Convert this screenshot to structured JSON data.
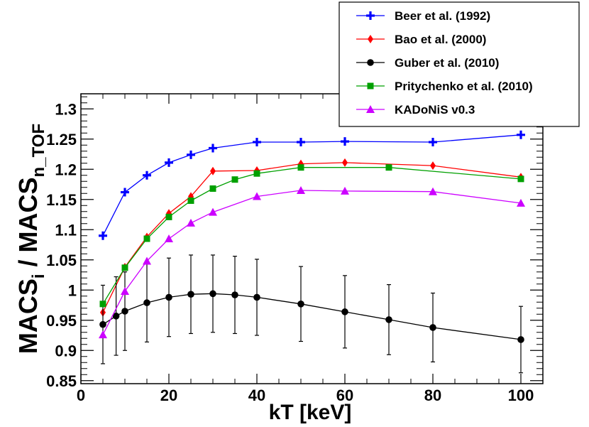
{
  "chart_data": {
    "type": "line",
    "title": "",
    "xlabel": "kT  [keV]",
    "ylabel": {
      "main": "MACS",
      "sub_i": "i",
      "divider": " / MACS",
      "sub_n": "n_TOF"
    },
    "xlim": [
      0,
      105
    ],
    "ylim": [
      0.845,
      1.325
    ],
    "xticks": [
      0,
      20,
      40,
      60,
      80,
      100
    ],
    "xtick_labels": [
      "0",
      "20",
      "40",
      "60",
      "80",
      "100"
    ],
    "yticks": [
      0.85,
      0.9,
      0.95,
      1.0,
      1.05,
      1.1,
      1.15,
      1.2,
      1.25,
      1.3
    ],
    "ytick_labels": [
      "0.85",
      "0.9",
      "0.95",
      "1",
      "1.05",
      "1.1",
      "1.15",
      "1.2",
      "1.25",
      "1.3"
    ],
    "legend_position": "top-right",
    "series": [
      {
        "name": "Beer et al. (1992)",
        "color": "#0000ff",
        "marker": "cross",
        "x": [
          5,
          10,
          15,
          20,
          25,
          30,
          40,
          50,
          60,
          80,
          100
        ],
        "values": [
          1.09,
          1.162,
          1.19,
          1.211,
          1.224,
          1.235,
          1.245,
          1.245,
          1.246,
          1.245,
          1.257
        ]
      },
      {
        "name": "Bao et al. (2000)",
        "color": "#ff0000",
        "marker": "diamond",
        "x": [
          5,
          10,
          15,
          20,
          25,
          30,
          40,
          50,
          60,
          80,
          100
        ],
        "values": [
          0.963,
          1.038,
          1.088,
          1.127,
          1.155,
          1.197,
          1.198,
          1.209,
          1.211,
          1.206,
          1.187
        ]
      },
      {
        "name": "Guber et al. (2010)",
        "color": "#000000",
        "marker": "circle",
        "x": [
          5,
          8,
          10,
          15,
          20,
          25,
          30,
          35,
          40,
          50,
          60,
          70,
          80,
          100
        ],
        "values": [
          0.943,
          0.957,
          0.965,
          0.979,
          0.988,
          0.993,
          0.994,
          0.992,
          0.988,
          0.977,
          0.964,
          0.951,
          0.938,
          0.918
        ],
        "errors": [
          0.065,
          0.065,
          0.065,
          0.065,
          0.065,
          0.065,
          0.064,
          0.064,
          0.063,
          0.062,
          0.06,
          0.058,
          0.057,
          0.055
        ]
      },
      {
        "name": "Pritychenko et al. (2010)",
        "color": "#00a000",
        "marker": "square",
        "x": [
          5,
          10,
          15,
          20,
          25,
          30,
          35,
          40,
          50,
          70,
          100
        ],
        "values": [
          0.977,
          1.037,
          1.085,
          1.121,
          1.148,
          1.168,
          1.183,
          1.193,
          1.203,
          1.203,
          1.184
        ]
      },
      {
        "name": "KADoNiS v0.3",
        "color": "#cc00ff",
        "marker": "triangle",
        "x": [
          5,
          10,
          15,
          20,
          25,
          30,
          40,
          50,
          60,
          80,
          100
        ],
        "values": [
          0.926,
          0.998,
          1.048,
          1.085,
          1.111,
          1.129,
          1.155,
          1.165,
          1.164,
          1.163,
          1.144
        ]
      }
    ]
  }
}
